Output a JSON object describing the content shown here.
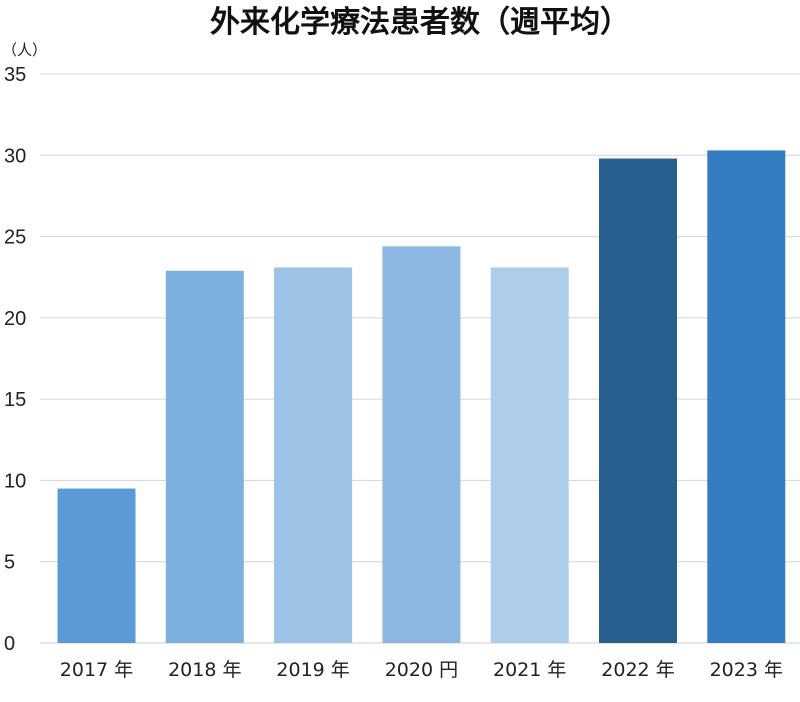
{
  "chart_data": {
    "type": "bar",
    "title": "外来化学療法患者数（週平均）",
    "ylabel": "（人）",
    "xlabel": "",
    "categories": [
      "2017 年",
      "2018 年",
      "2019 年",
      "2020 円",
      "2021 年",
      "2022 年",
      "2023 年"
    ],
    "values": [
      9.5,
      22.9,
      23.1,
      24.4,
      23.1,
      29.8,
      30.3
    ],
    "colors": [
      "#5b9bd5",
      "#7eb0de",
      "#9cc3e6",
      "#8bb7e0",
      "#aecde9",
      "#27608f",
      "#347dc0"
    ],
    "ylim": [
      0,
      35
    ],
    "yticks": [
      0,
      5,
      10,
      15,
      20,
      25,
      30,
      35
    ],
    "grid": true,
    "legend": "none"
  }
}
